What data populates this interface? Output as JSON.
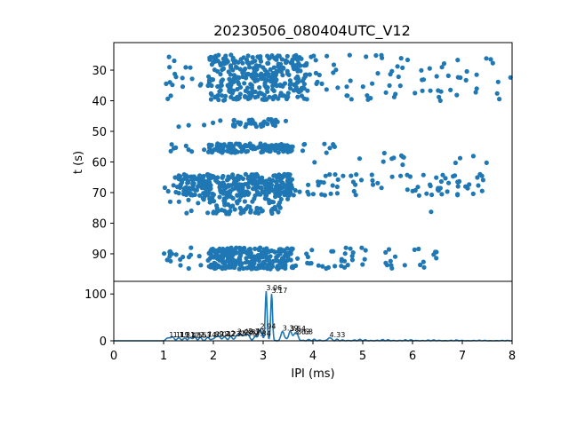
{
  "chart_data": [
    {
      "type": "scatter",
      "title": "20230506_080404UTC_V12",
      "ylabel": "t (s)",
      "xlabel": "",
      "xlim": [
        0,
        8
      ],
      "ylim": [
        99,
        21
      ],
      "y_inverted": true,
      "x_hidden": true,
      "yticks": [
        30,
        40,
        50,
        60,
        70,
        80,
        90
      ],
      "color": "#1f77b4",
      "bands": [
        {
          "t_min": 25,
          "t_max": 40,
          "x_min": 1.0,
          "x_max": 8.0,
          "n": 420,
          "dense_min": 1.9,
          "dense_max": 3.9
        },
        {
          "t_min": 46,
          "t_max": 48.5,
          "x_min": 1.1,
          "x_max": 3.5,
          "n": 45,
          "dense_min": 2.4,
          "dense_max": 3.3
        },
        {
          "t_min": 54,
          "t_max": 57,
          "x_min": 1.1,
          "x_max": 4.6,
          "n": 150,
          "dense_min": 1.9,
          "dense_max": 3.6
        },
        {
          "t_min": 57,
          "t_max": 61,
          "x_min": 3.7,
          "x_max": 7.8,
          "n": 14,
          "dense_min": 5.4,
          "dense_max": 6.2
        },
        {
          "t_min": 64,
          "t_max": 71,
          "x_min": 1.0,
          "x_max": 7.5,
          "n": 390,
          "dense_min": 1.3,
          "dense_max": 3.6
        },
        {
          "t_min": 71,
          "t_max": 77,
          "x_min": 1.0,
          "x_max": 3.5,
          "n": 90,
          "dense_min": 1.8,
          "dense_max": 3.4
        },
        {
          "t_min": 76,
          "t_max": 76.5,
          "x_min": 6.3,
          "x_max": 6.4,
          "n": 1,
          "dense_min": 6.3,
          "dense_max": 6.4
        },
        {
          "t_min": 88,
          "t_max": 95,
          "x_min": 1.0,
          "x_max": 6.5,
          "n": 330,
          "dense_min": 1.9,
          "dense_max": 3.6
        }
      ]
    },
    {
      "type": "line",
      "title": "",
      "xlabel": "IPI (ms)",
      "ylabel": "",
      "xlim": [
        0,
        8
      ],
      "ylim": [
        0,
        127
      ],
      "xticks": [
        0,
        1,
        2,
        3,
        4,
        5,
        6,
        7,
        8
      ],
      "yticks": [
        0,
        100
      ],
      "color": "#1f77b4",
      "peaks": [
        {
          "x": 1.11,
          "y": 6,
          "label": "1.11"
        },
        {
          "x": 1.19,
          "y": 6,
          "label": "1.19"
        },
        {
          "x": 1.31,
          "y": 6,
          "label": "1.31"
        },
        {
          "x": 1.43,
          "y": 5,
          "label": "1.43"
        },
        {
          "x": 1.55,
          "y": 5,
          "label": "1.55"
        },
        {
          "x": 1.63,
          "y": 5,
          "label": "1.63"
        },
        {
          "x": 1.74,
          "y": 6,
          "label": "1.74"
        },
        {
          "x": 1.89,
          "y": 7,
          "label": "1.89"
        },
        {
          "x": 2.04,
          "y": 7,
          "label": "2.04"
        },
        {
          "x": 2.12,
          "y": 8,
          "label": "2.12"
        },
        {
          "x": 2.23,
          "y": 8,
          "label": "2.23"
        },
        {
          "x": 2.35,
          "y": 9,
          "label": "2.35"
        },
        {
          "x": 2.48,
          "y": 12,
          "label": "2.48"
        },
        {
          "x": 2.55,
          "y": 9,
          "label": "2.55"
        },
        {
          "x": 2.62,
          "y": 11,
          "label": "2.62"
        },
        {
          "x": 2.7,
          "y": 13,
          "label": "2.70"
        },
        {
          "x": 2.84,
          "y": 9,
          "label": "2.84"
        },
        {
          "x": 2.94,
          "y": 24,
          "label": "2.94"
        },
        {
          "x": 3.06,
          "y": 106,
          "label": "3.06"
        },
        {
          "x": 3.17,
          "y": 100,
          "label": "3.17"
        },
        {
          "x": 3.39,
          "y": 20,
          "label": "3.39"
        },
        {
          "x": 3.54,
          "y": 19,
          "label": "3.54"
        },
        {
          "x": 3.63,
          "y": 12,
          "label": "3.63"
        },
        {
          "x": 3.68,
          "y": 12,
          "label": "3.68"
        },
        {
          "x": 4.33,
          "y": 6,
          "label": "4.33"
        }
      ]
    }
  ]
}
